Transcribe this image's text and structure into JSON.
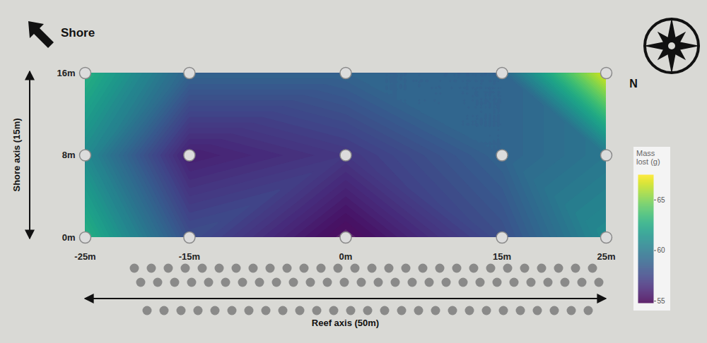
{
  "chart_data": {
    "type": "heatmap",
    "xlabel": "Reef axis (50m)",
    "ylabel": "Shore axis (15m)",
    "annotations": [
      "Shore",
      "N"
    ],
    "x": [
      -25,
      -15,
      0,
      15,
      25
    ],
    "y": [
      0,
      8,
      16
    ],
    "values": [
      [
        63,
        58,
        55,
        58,
        61
      ],
      [
        61,
        56,
        57,
        59,
        60
      ],
      [
        63,
        59,
        59,
        59,
        67
      ]
    ],
    "xlim": [
      -25,
      25
    ],
    "ylim": [
      0,
      16
    ],
    "xticks": [
      {
        "value": -25,
        "label": "-25m"
      },
      {
        "value": -15,
        "label": "-15m"
      },
      {
        "value": 0,
        "label": "0m"
      },
      {
        "value": 15,
        "label": "15m"
      },
      {
        "value": 25,
        "label": "25m"
      }
    ],
    "yticks": [
      {
        "value": 0,
        "label": "0m"
      },
      {
        "value": 8,
        "label": "8m"
      },
      {
        "value": 16,
        "label": "16m"
      }
    ],
    "colorbar": {
      "label": "Mass lost (g)",
      "range": [
        54.8,
        67.5
      ],
      "ticks": [
        55,
        60,
        65
      ]
    }
  }
}
